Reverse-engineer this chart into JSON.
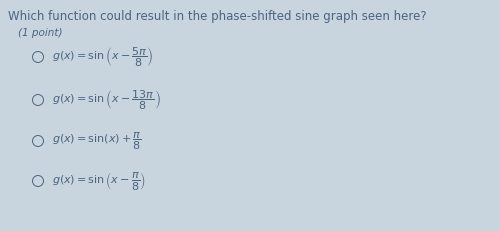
{
  "title": "Which function could result in the phase-shifted sine graph seen here?",
  "subtitle": "(1 point)",
  "background_color": "#c8d4de",
  "text_color": "#4a6580",
  "title_fontsize": 8.5,
  "subtitle_fontsize": 7.5,
  "option_fontsize": 8.0,
  "option_latex": [
    "$g(x) = \\sin\\left(x - \\dfrac{5\\pi}{8}\\right)$",
    "$g(x) = \\sin\\left(x - \\dfrac{13\\pi}{8}\\right)$",
    "$g(x) = \\sin(x) + \\dfrac{\\pi}{8}$",
    "$g(x) = \\sin\\left(x - \\dfrac{\\pi}{8}\\right)$"
  ],
  "figsize": [
    5.0,
    2.31
  ],
  "dpi": 100
}
